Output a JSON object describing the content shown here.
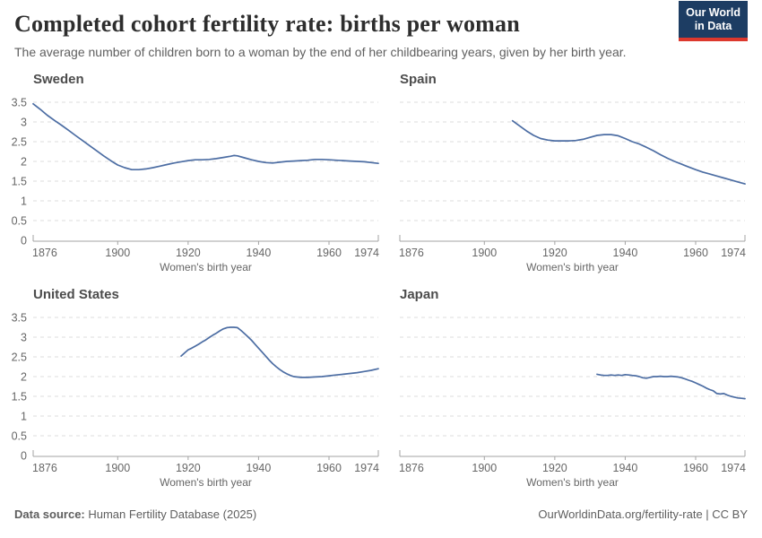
{
  "header": {
    "title": "Completed cohort fertility rate: births per woman",
    "subtitle": "The average number of children born to a woman by the end of her childbearing years, given by her birth year.",
    "logo": {
      "line1": "Our World",
      "line2": "in Data",
      "bg_color": "#1d3d63",
      "bar_color": "#dc382d"
    }
  },
  "footer": {
    "source_label": "Data source:",
    "source_text": " Human Fertility Database (2025)",
    "link_text": "OurWorldinData.org/fertility-rate | CC BY"
  },
  "chart_data": {
    "type": "line",
    "layout": "2x2 small multiples",
    "title": "Completed cohort fertility rate: births per woman",
    "xlabel": "Women's birth year",
    "ylabel": "",
    "xlim": [
      1876,
      1974
    ],
    "ylim": [
      0,
      3.5
    ],
    "x_ticks": [
      1876,
      1900,
      1920,
      1940,
      1960,
      1974
    ],
    "y_ticks": [
      0,
      0.5,
      1,
      1.5,
      2,
      2.5,
      3,
      3.5
    ],
    "grid": "dashed horizontal gridlines",
    "legend": "none",
    "line_color": "#4c6da3",
    "grid_color": "#dcdcdc",
    "axis_color": "#a3a3a3",
    "tick_label_color": "#666666",
    "panels": [
      {
        "name": "Sweden",
        "show_y_labels": true,
        "points": [
          [
            1876,
            3.46
          ],
          [
            1878,
            3.32
          ],
          [
            1880,
            3.17
          ],
          [
            1882,
            3.04
          ],
          [
            1884,
            2.92
          ],
          [
            1886,
            2.79
          ],
          [
            1888,
            2.66
          ],
          [
            1890,
            2.53
          ],
          [
            1892,
            2.4
          ],
          [
            1894,
            2.27
          ],
          [
            1896,
            2.14
          ],
          [
            1898,
            2.02
          ],
          [
            1900,
            1.91
          ],
          [
            1902,
            1.84
          ],
          [
            1904,
            1.79
          ],
          [
            1906,
            1.79
          ],
          [
            1908,
            1.81
          ],
          [
            1910,
            1.84
          ],
          [
            1912,
            1.88
          ],
          [
            1914,
            1.92
          ],
          [
            1916,
            1.96
          ],
          [
            1918,
            1.99
          ],
          [
            1920,
            2.02
          ],
          [
            1922,
            2.04
          ],
          [
            1924,
            2.04
          ],
          [
            1926,
            2.05
          ],
          [
            1928,
            2.07
          ],
          [
            1930,
            2.1
          ],
          [
            1932,
            2.13
          ],
          [
            1933,
            2.15
          ],
          [
            1934,
            2.14
          ],
          [
            1936,
            2.09
          ],
          [
            1938,
            2.04
          ],
          [
            1940,
            2.0
          ],
          [
            1942,
            1.97
          ],
          [
            1944,
            1.96
          ],
          [
            1946,
            1.98
          ],
          [
            1948,
            2.0
          ],
          [
            1950,
            2.01
          ],
          [
            1952,
            2.02
          ],
          [
            1954,
            2.03
          ],
          [
            1956,
            2.05
          ],
          [
            1958,
            2.05
          ],
          [
            1960,
            2.04
          ],
          [
            1962,
            2.03
          ],
          [
            1964,
            2.02
          ],
          [
            1966,
            2.01
          ],
          [
            1968,
            2.0
          ],
          [
            1970,
            1.99
          ],
          [
            1972,
            1.97
          ],
          [
            1974,
            1.95
          ]
        ]
      },
      {
        "name": "Spain",
        "show_y_labels": false,
        "points": [
          [
            1908,
            3.03
          ],
          [
            1910,
            2.9
          ],
          [
            1912,
            2.77
          ],
          [
            1914,
            2.66
          ],
          [
            1916,
            2.58
          ],
          [
            1918,
            2.54
          ],
          [
            1920,
            2.52
          ],
          [
            1922,
            2.52
          ],
          [
            1924,
            2.52
          ],
          [
            1926,
            2.53
          ],
          [
            1928,
            2.56
          ],
          [
            1930,
            2.61
          ],
          [
            1932,
            2.66
          ],
          [
            1934,
            2.68
          ],
          [
            1936,
            2.68
          ],
          [
            1938,
            2.65
          ],
          [
            1940,
            2.58
          ],
          [
            1942,
            2.5
          ],
          [
            1944,
            2.44
          ],
          [
            1946,
            2.36
          ],
          [
            1948,
            2.27
          ],
          [
            1950,
            2.17
          ],
          [
            1952,
            2.08
          ],
          [
            1954,
            2.0
          ],
          [
            1956,
            1.93
          ],
          [
            1958,
            1.86
          ],
          [
            1960,
            1.79
          ],
          [
            1962,
            1.73
          ],
          [
            1964,
            1.68
          ],
          [
            1966,
            1.63
          ],
          [
            1968,
            1.58
          ],
          [
            1970,
            1.53
          ],
          [
            1972,
            1.48
          ],
          [
            1974,
            1.43
          ]
        ]
      },
      {
        "name": "United States",
        "show_y_labels": true,
        "points": [
          [
            1918,
            2.52
          ],
          [
            1919,
            2.6
          ],
          [
            1920,
            2.68
          ],
          [
            1921,
            2.72
          ],
          [
            1922,
            2.77
          ],
          [
            1923,
            2.82
          ],
          [
            1924,
            2.88
          ],
          [
            1925,
            2.93
          ],
          [
            1926,
            2.99
          ],
          [
            1927,
            3.05
          ],
          [
            1928,
            3.1
          ],
          [
            1929,
            3.16
          ],
          [
            1930,
            3.21
          ],
          [
            1931,
            3.24
          ],
          [
            1932,
            3.25
          ],
          [
            1933,
            3.25
          ],
          [
            1934,
            3.24
          ],
          [
            1935,
            3.17
          ],
          [
            1936,
            3.09
          ],
          [
            1937,
            3.01
          ],
          [
            1938,
            2.92
          ],
          [
            1939,
            2.82
          ],
          [
            1940,
            2.72
          ],
          [
            1941,
            2.62
          ],
          [
            1942,
            2.52
          ],
          [
            1943,
            2.42
          ],
          [
            1944,
            2.33
          ],
          [
            1945,
            2.25
          ],
          [
            1946,
            2.18
          ],
          [
            1947,
            2.12
          ],
          [
            1948,
            2.07
          ],
          [
            1949,
            2.03
          ],
          [
            1950,
            2.0
          ],
          [
            1952,
            1.98
          ],
          [
            1954,
            1.98
          ],
          [
            1956,
            1.99
          ],
          [
            1958,
            2.0
          ],
          [
            1960,
            2.02
          ],
          [
            1962,
            2.04
          ],
          [
            1964,
            2.06
          ],
          [
            1966,
            2.08
          ],
          [
            1968,
            2.1
          ],
          [
            1970,
            2.13
          ],
          [
            1972,
            2.16
          ],
          [
            1974,
            2.2
          ]
        ]
      },
      {
        "name": "Japan",
        "show_y_labels": false,
        "points": [
          [
            1932,
            2.06
          ],
          [
            1933,
            2.04
          ],
          [
            1934,
            2.03
          ],
          [
            1935,
            2.03
          ],
          [
            1936,
            2.04
          ],
          [
            1937,
            2.03
          ],
          [
            1938,
            2.04
          ],
          [
            1939,
            2.03
          ],
          [
            1940,
            2.05
          ],
          [
            1941,
            2.04
          ],
          [
            1942,
            2.03
          ],
          [
            1943,
            2.02
          ],
          [
            1944,
            2.0
          ],
          [
            1945,
            1.97
          ],
          [
            1946,
            1.96
          ],
          [
            1947,
            1.98
          ],
          [
            1948,
            2.0
          ],
          [
            1949,
            2.0
          ],
          [
            1950,
            2.01
          ],
          [
            1951,
            2.0
          ],
          [
            1952,
            2.0
          ],
          [
            1953,
            2.01
          ],
          [
            1954,
            2.0
          ],
          [
            1955,
            1.99
          ],
          [
            1956,
            1.97
          ],
          [
            1957,
            1.94
          ],
          [
            1958,
            1.91
          ],
          [
            1959,
            1.88
          ],
          [
            1960,
            1.84
          ],
          [
            1961,
            1.8
          ],
          [
            1962,
            1.76
          ],
          [
            1963,
            1.71
          ],
          [
            1964,
            1.67
          ],
          [
            1965,
            1.64
          ],
          [
            1966,
            1.57
          ],
          [
            1967,
            1.56
          ],
          [
            1968,
            1.57
          ],
          [
            1969,
            1.53
          ],
          [
            1970,
            1.5
          ],
          [
            1971,
            1.48
          ],
          [
            1972,
            1.46
          ],
          [
            1973,
            1.45
          ],
          [
            1974,
            1.44
          ]
        ]
      }
    ]
  }
}
